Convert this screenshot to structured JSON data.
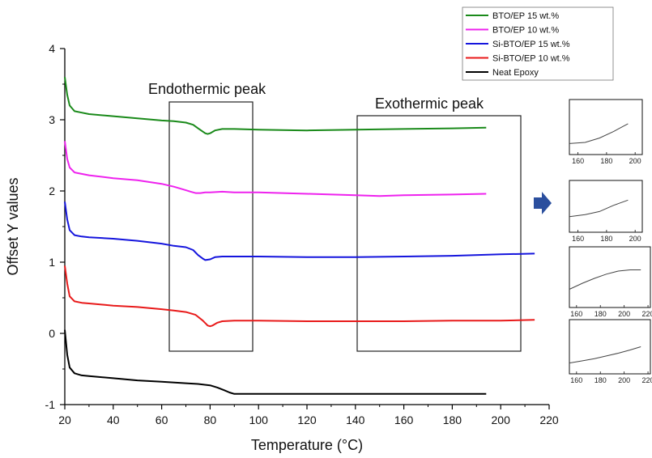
{
  "chart_data": {
    "type": "line",
    "xlabel": "Temperature (°C)",
    "ylabel": "Offset Y values",
    "xlim": [
      20,
      220
    ],
    "ylim": [
      -1,
      4
    ],
    "x_ticks": [
      20,
      40,
      60,
      80,
      100,
      120,
      140,
      160,
      180,
      200,
      220
    ],
    "y_ticks": [
      -1,
      0,
      1,
      2,
      3,
      4
    ],
    "grid": false,
    "legend_position": "top-right",
    "annotations": [
      {
        "label": "Endothermic peak",
        "x_range": [
          63,
          98
        ],
        "y_range": [
          -0.25,
          3.25
        ]
      },
      {
        "label": "Exothermic peak",
        "x_range": [
          141,
          209
        ],
        "y_range": [
          -0.25,
          3.05
        ]
      }
    ],
    "series": [
      {
        "name": "BTO/EP 15 wt.%",
        "color": "#1a8a1a",
        "x": [
          20,
          21,
          22,
          24,
          27,
          30,
          40,
          50,
          60,
          65,
          70,
          73,
          75,
          78,
          79,
          80,
          82,
          85,
          90,
          100,
          120,
          140,
          160,
          180,
          194
        ],
        "y": [
          3.6,
          3.35,
          3.2,
          3.12,
          3.1,
          3.08,
          3.05,
          3.02,
          2.99,
          2.98,
          2.96,
          2.93,
          2.88,
          2.81,
          2.8,
          2.81,
          2.85,
          2.87,
          2.87,
          2.86,
          2.85,
          2.86,
          2.87,
          2.88,
          2.89
        ]
      },
      {
        "name": "BTO/EP 10 wt.%",
        "color": "#ee22ee",
        "x": [
          20,
          21,
          22,
          24,
          27,
          30,
          40,
          50,
          60,
          65,
          70,
          72,
          74,
          76,
          78,
          80,
          85,
          90,
          100,
          120,
          140,
          150,
          160,
          180,
          194
        ],
        "y": [
          2.7,
          2.45,
          2.33,
          2.26,
          2.24,
          2.22,
          2.18,
          2.15,
          2.1,
          2.06,
          2.01,
          1.99,
          1.97,
          1.97,
          1.98,
          1.98,
          1.99,
          1.98,
          1.98,
          1.96,
          1.94,
          1.93,
          1.94,
          1.95,
          1.96
        ]
      },
      {
        "name": "Si-BTO/EP 15 wt.%",
        "color": "#1515dd",
        "x": [
          20,
          21,
          22,
          24,
          27,
          30,
          40,
          50,
          60,
          65,
          70,
          73,
          75,
          77,
          78,
          80,
          82,
          85,
          90,
          100,
          120,
          140,
          160,
          180,
          200,
          214
        ],
        "y": [
          1.85,
          1.6,
          1.45,
          1.38,
          1.36,
          1.35,
          1.33,
          1.3,
          1.26,
          1.23,
          1.21,
          1.17,
          1.1,
          1.05,
          1.03,
          1.04,
          1.07,
          1.08,
          1.08,
          1.08,
          1.07,
          1.07,
          1.08,
          1.09,
          1.11,
          1.12
        ]
      },
      {
        "name": "Si-BTO/EP 10 wt.%",
        "color": "#e81a1a",
        "x": [
          20,
          21,
          22,
          24,
          27,
          30,
          40,
          50,
          60,
          65,
          70,
          74,
          77,
          79,
          80,
          81,
          83,
          85,
          90,
          100,
          120,
          140,
          160,
          180,
          200,
          214
        ],
        "y": [
          0.95,
          0.7,
          0.52,
          0.45,
          0.43,
          0.42,
          0.39,
          0.37,
          0.34,
          0.32,
          0.3,
          0.26,
          0.18,
          0.11,
          0.1,
          0.11,
          0.15,
          0.17,
          0.18,
          0.18,
          0.17,
          0.17,
          0.17,
          0.18,
          0.18,
          0.19
        ]
      },
      {
        "name": "Neat Epoxy",
        "color": "#000000",
        "x": [
          20,
          21,
          22,
          24,
          27,
          30,
          40,
          50,
          60,
          70,
          75,
          80,
          83,
          86,
          88,
          90,
          92,
          100,
          120,
          140,
          160,
          180,
          194
        ],
        "y": [
          0.05,
          -0.3,
          -0.48,
          -0.56,
          -0.59,
          -0.6,
          -0.63,
          -0.66,
          -0.68,
          -0.7,
          -0.71,
          -0.73,
          -0.76,
          -0.8,
          -0.83,
          -0.85,
          -0.85,
          -0.85,
          -0.85,
          -0.85,
          -0.85,
          -0.85,
          -0.85
        ]
      }
    ],
    "insets": [
      {
        "x_ticks": [
          "160",
          "180",
          "200"
        ],
        "color": "#444444",
        "x": [
          154,
          165,
          175,
          185,
          195
        ],
        "y": [
          0.2,
          0.22,
          0.3,
          0.42,
          0.56
        ],
        "xlim": [
          154,
          205
        ],
        "ylim": [
          0,
          1
        ]
      },
      {
        "x_ticks": [
          "160",
          "180",
          "200"
        ],
        "color": "#444444",
        "x": [
          154,
          165,
          175,
          185,
          195
        ],
        "y": [
          0.3,
          0.34,
          0.4,
          0.52,
          0.62
        ],
        "xlim": [
          154,
          205
        ],
        "ylim": [
          0,
          1
        ]
      },
      {
        "x_ticks": [
          "160",
          "180",
          "200",
          "220"
        ],
        "color": "#444444",
        "x": [
          154,
          165,
          175,
          185,
          195,
          205,
          214
        ],
        "y": [
          0.3,
          0.4,
          0.48,
          0.55,
          0.6,
          0.62,
          0.62
        ],
        "xlim": [
          154,
          222
        ],
        "ylim": [
          0,
          1
        ]
      },
      {
        "x_ticks": [
          "160",
          "180",
          "200",
          "220"
        ],
        "color": "#444444",
        "x": [
          154,
          165,
          175,
          185,
          195,
          205,
          214
        ],
        "y": [
          0.2,
          0.24,
          0.28,
          0.33,
          0.38,
          0.44,
          0.5
        ],
        "xlim": [
          154,
          222
        ],
        "ylim": [
          0,
          1
        ]
      }
    ],
    "arrow_color": "#2b4f9e"
  }
}
